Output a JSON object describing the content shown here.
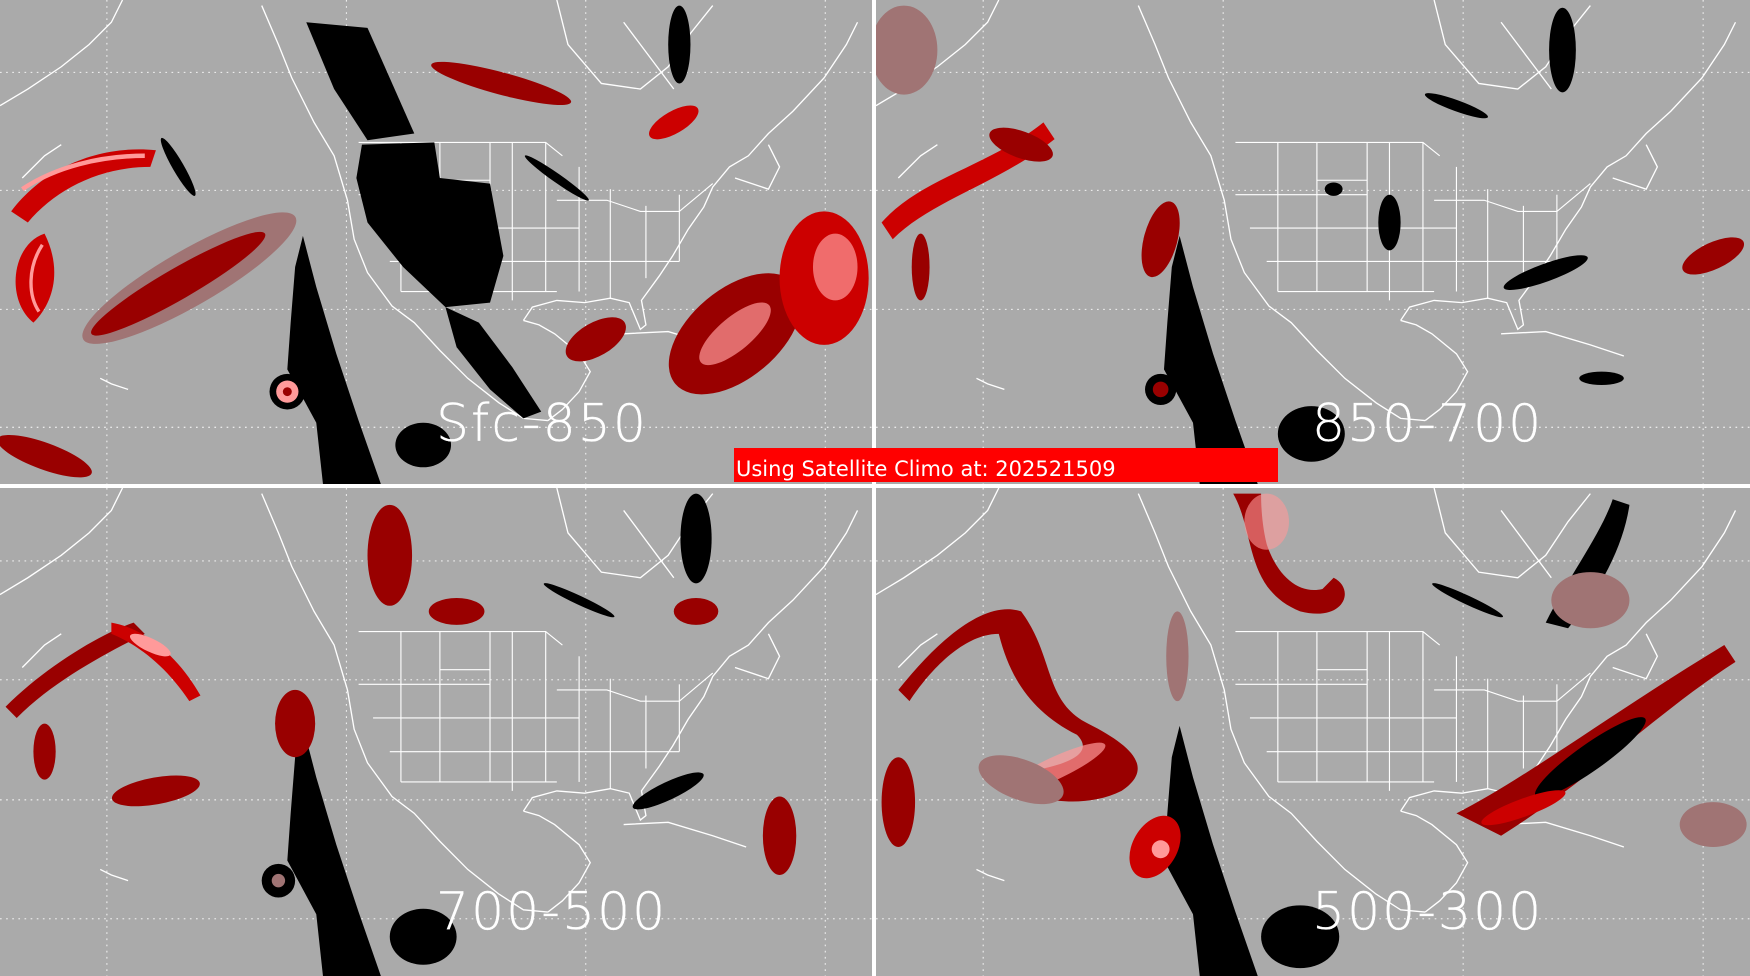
{
  "panels": [
    {
      "label": "Sfc-850"
    },
    {
      "label": "850-700"
    },
    {
      "label": "700-500"
    },
    {
      "label": "500-300"
    }
  ],
  "banner": {
    "text": "Using Satellite Climo at: 202521509"
  },
  "colors": {
    "background": "#aaaaaa",
    "clear": "#000000",
    "dark_red": "#990000",
    "red": "#cc0000",
    "pink": "#ff9a9a",
    "rosy_brown": "#a07474",
    "banner": "#ff0000",
    "lines": "#ffffff"
  }
}
